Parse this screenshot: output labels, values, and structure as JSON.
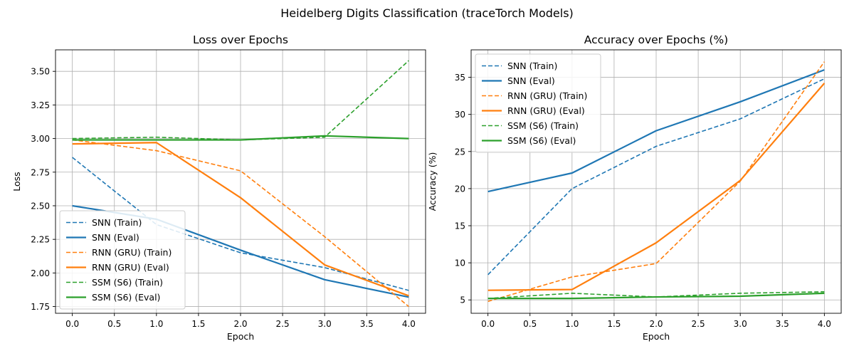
{
  "suptitle": "Heidelberg Digits Classification (traceTorch Models)",
  "chart_data": [
    {
      "type": "line",
      "title": "Loss over Epochs",
      "xlabel": "Epoch",
      "ylabel": "Loss",
      "x": [
        0,
        1,
        2,
        3,
        4
      ],
      "xlim": [
        -0.2,
        4.2
      ],
      "ylim": [
        1.7,
        3.66
      ],
      "xticks": [
        0.0,
        0.5,
        1.0,
        1.5,
        2.0,
        2.5,
        3.0,
        3.5,
        4.0
      ],
      "xtick_labels": [
        "0.0",
        "0.5",
        "1.0",
        "1.5",
        "2.0",
        "2.5",
        "3.0",
        "3.5",
        "4.0"
      ],
      "yticks": [
        1.75,
        2.0,
        2.25,
        2.5,
        2.75,
        3.0,
        3.25,
        3.5
      ],
      "ytick_labels": [
        "1.75",
        "2.00",
        "2.25",
        "2.50",
        "2.75",
        "3.00",
        "3.25",
        "3.50"
      ],
      "grid": true,
      "legend_position": "lower-left",
      "series": [
        {
          "name": "SNN (Train)",
          "color": "#1f77b4",
          "style": "dashed",
          "values": [
            2.86,
            2.36,
            2.15,
            2.04,
            1.87
          ]
        },
        {
          "name": "SNN (Eval)",
          "color": "#1f77b4",
          "style": "solid",
          "values": [
            2.5,
            2.4,
            2.17,
            1.95,
            1.82
          ]
        },
        {
          "name": "RNN (GRU) (Train)",
          "color": "#ff7f0e",
          "style": "dashed",
          "values": [
            2.99,
            2.91,
            2.76,
            2.27,
            1.75
          ]
        },
        {
          "name": "RNN (GRU) (Eval)",
          "color": "#ff7f0e",
          "style": "solid",
          "values": [
            2.96,
            2.97,
            2.56,
            2.06,
            1.83
          ]
        },
        {
          "name": "SSM (S6) (Train)",
          "color": "#2ca02c",
          "style": "dashed",
          "values": [
            3.0,
            3.01,
            2.99,
            3.01,
            3.58
          ]
        },
        {
          "name": "SSM (S6) (Eval)",
          "color": "#2ca02c",
          "style": "solid",
          "values": [
            2.99,
            2.99,
            2.99,
            3.02,
            3.0
          ]
        }
      ]
    },
    {
      "type": "line",
      "title": "Accuracy over Epochs (%)",
      "xlabel": "Epoch",
      "ylabel": "Accuracy (%)",
      "x": [
        0,
        1,
        2,
        3,
        4
      ],
      "xlim": [
        -0.2,
        4.2
      ],
      "ylim": [
        3.2,
        38.7
      ],
      "xticks": [
        0.0,
        0.5,
        1.0,
        1.5,
        2.0,
        2.5,
        3.0,
        3.5,
        4.0
      ],
      "xtick_labels": [
        "0.0",
        "0.5",
        "1.0",
        "1.5",
        "2.0",
        "2.5",
        "3.0",
        "3.5",
        "4.0"
      ],
      "yticks": [
        5,
        10,
        15,
        20,
        25,
        30,
        35
      ],
      "ytick_labels": [
        "5",
        "10",
        "15",
        "20",
        "25",
        "30",
        "35"
      ],
      "grid": true,
      "legend_position": "upper-left",
      "series": [
        {
          "name": "SNN (Train)",
          "color": "#1f77b4",
          "style": "dashed",
          "values": [
            8.4,
            20.0,
            25.7,
            29.4,
            34.8
          ]
        },
        {
          "name": "SNN (Eval)",
          "color": "#1f77b4",
          "style": "solid",
          "values": [
            19.6,
            22.1,
            27.8,
            31.7,
            36.0
          ]
        },
        {
          "name": "RNN (GRU) (Train)",
          "color": "#ff7f0e",
          "style": "dashed",
          "values": [
            4.8,
            8.1,
            9.9,
            21.0,
            37.1
          ]
        },
        {
          "name": "RNN (GRU) (Eval)",
          "color": "#ff7f0e",
          "style": "solid",
          "values": [
            6.3,
            6.4,
            12.7,
            21.1,
            34.2
          ]
        },
        {
          "name": "SSM (S6) (Train)",
          "color": "#2ca02c",
          "style": "dashed",
          "values": [
            5.2,
            5.9,
            5.4,
            5.9,
            6.1
          ]
        },
        {
          "name": "SSM (S6) (Eval)",
          "color": "#2ca02c",
          "style": "solid",
          "values": [
            5.2,
            5.2,
            5.4,
            5.5,
            5.9
          ]
        }
      ]
    }
  ]
}
